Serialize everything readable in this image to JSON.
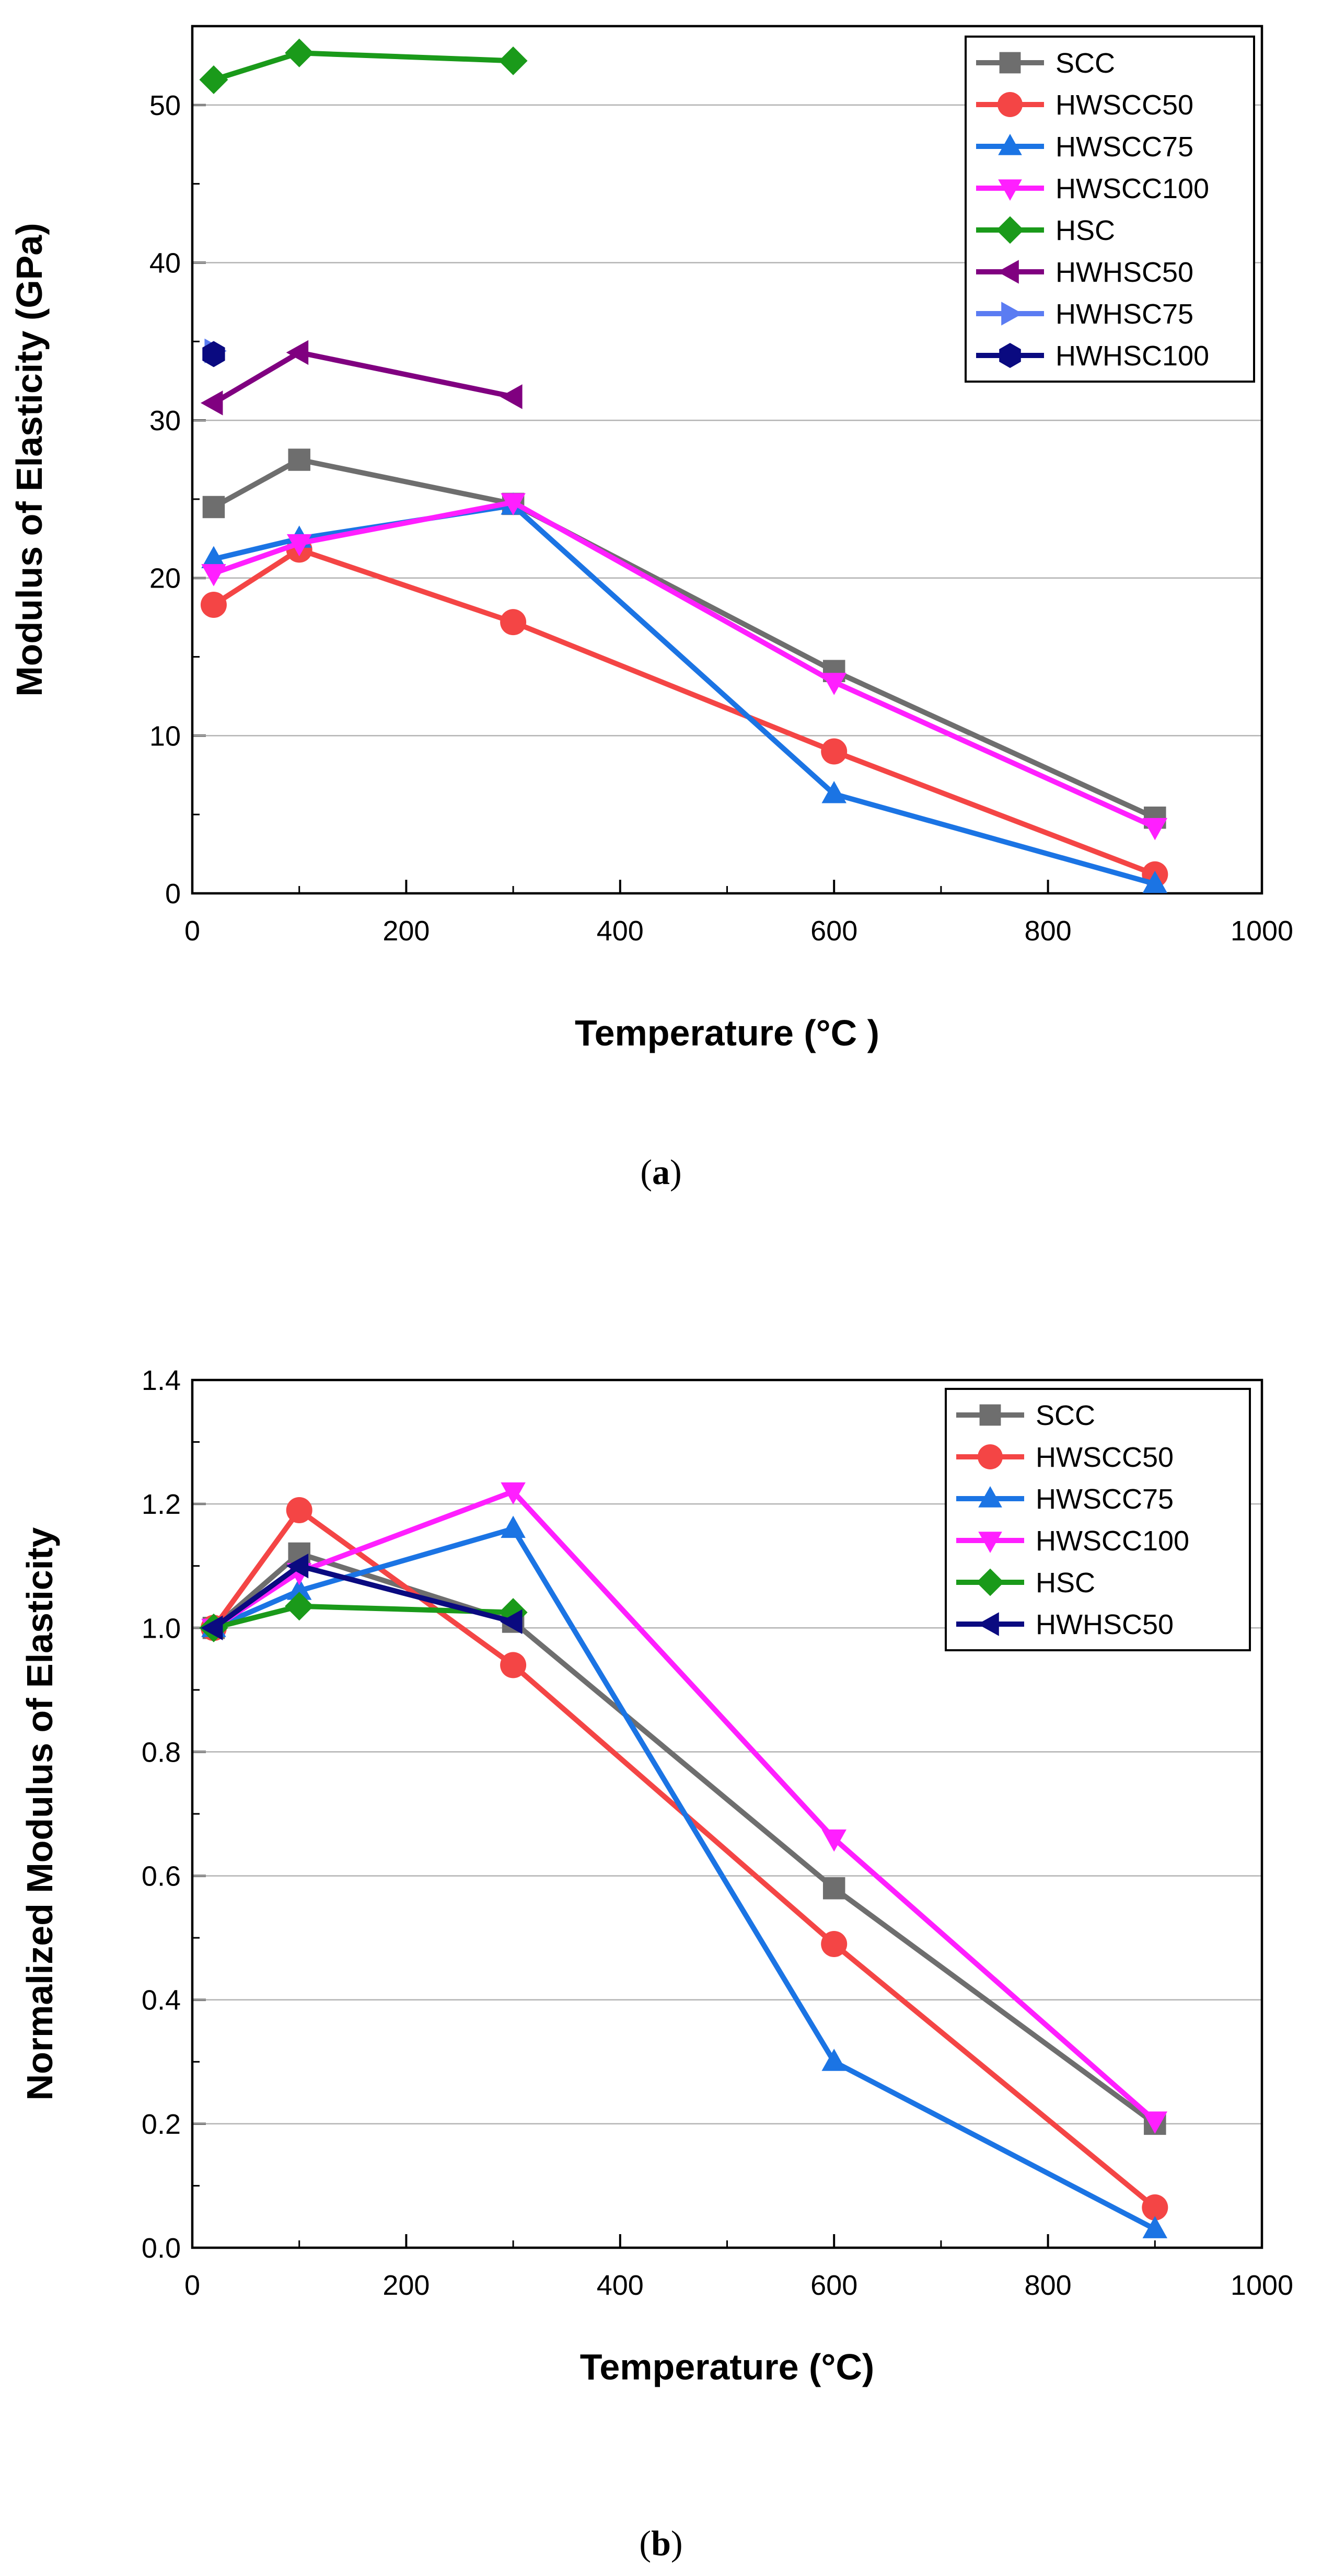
{
  "figure": {
    "caption_a": {
      "open": "(",
      "letter": "a",
      "close": ")"
    },
    "caption_b": {
      "open": "(",
      "letter": "b",
      "close": ")"
    }
  },
  "chart_data": [
    {
      "id": "a",
      "type": "line",
      "xlabel": "Temperature (°C )",
      "ylabel": "Modulus of Elasticity (GPa)",
      "xlim": [
        0,
        1000
      ],
      "ylim": [
        0,
        55
      ],
      "xticks": [
        0,
        200,
        400,
        600,
        800,
        1000
      ],
      "yticks": [
        0,
        10,
        20,
        30,
        40,
        50
      ],
      "grid": true,
      "legend_position": "top-right",
      "series": [
        {
          "name": "SCC",
          "color": "#6e6e6e",
          "marker": "square",
          "x": [
            20,
            100,
            300,
            600,
            900
          ],
          "y": [
            24.5,
            27.5,
            24.7,
            14.1,
            4.8
          ]
        },
        {
          "name": "HWSCC50",
          "color": "#f44545",
          "marker": "circle",
          "x": [
            20,
            100,
            300,
            600,
            900
          ],
          "y": [
            18.3,
            21.8,
            17.2,
            9.0,
            1.2
          ]
        },
        {
          "name": "HWSCC75",
          "color": "#1b74e4",
          "marker": "triangle-up",
          "x": [
            20,
            100,
            300,
            600,
            900
          ],
          "y": [
            21.2,
            22.5,
            24.6,
            6.3,
            0.6
          ]
        },
        {
          "name": "HWSCC100",
          "color": "#ff1fff",
          "marker": "triangle-down",
          "x": [
            20,
            100,
            300,
            600,
            900
          ],
          "y": [
            20.3,
            22.2,
            24.8,
            13.4,
            4.2
          ]
        },
        {
          "name": "HSC",
          "color": "#1a9a1a",
          "marker": "diamond",
          "x": [
            20,
            100,
            300
          ],
          "y": [
            51.6,
            53.3,
            52.8
          ]
        },
        {
          "name": "HWHSC50",
          "color": "#800080",
          "marker": "triangle-left",
          "x": [
            20,
            100,
            300
          ],
          "y": [
            31.1,
            34.3,
            31.5
          ]
        },
        {
          "name": "HWHSC75",
          "color": "#5b7cf2",
          "marker": "triangle-right",
          "x": [
            20
          ],
          "y": [
            34.4
          ]
        },
        {
          "name": "HWHSC100",
          "color": "#0a0a80",
          "marker": "hexagon",
          "x": [
            20
          ],
          "y": [
            34.2
          ]
        }
      ]
    },
    {
      "id": "b",
      "type": "line",
      "xlabel": "Temperature (°C)",
      "ylabel": "Normalized Modulus of Elasticity",
      "xlim": [
        0,
        1000
      ],
      "ylim": [
        0,
        1.4
      ],
      "xticks": [
        0,
        200,
        400,
        600,
        800,
        1000
      ],
      "yticks": [
        "0.0",
        "0.2",
        "0.4",
        "0.6",
        "0.8",
        "1.0",
        "1.2",
        "1.4"
      ],
      "grid": true,
      "legend_position": "top-right",
      "series": [
        {
          "name": "SCC",
          "color": "#6e6e6e",
          "marker": "square",
          "x": [
            20,
            100,
            300,
            600,
            900
          ],
          "y": [
            1.0,
            1.12,
            1.01,
            0.58,
            0.2
          ]
        },
        {
          "name": "HWSCC50",
          "color": "#f44545",
          "marker": "circle",
          "x": [
            20,
            100,
            300,
            600,
            900
          ],
          "y": [
            1.0,
            1.19,
            0.94,
            0.49,
            0.065
          ]
        },
        {
          "name": "HWSCC75",
          "color": "#1b74e4",
          "marker": "triangle-up",
          "x": [
            20,
            100,
            300,
            600,
            900
          ],
          "y": [
            1.0,
            1.06,
            1.16,
            0.3,
            0.03
          ]
        },
        {
          "name": "HWSCC100",
          "color": "#ff1fff",
          "marker": "triangle-down",
          "x": [
            20,
            100,
            300,
            600,
            900
          ],
          "y": [
            1.0,
            1.09,
            1.22,
            0.66,
            0.205
          ]
        },
        {
          "name": "HSC",
          "color": "#1a9a1a",
          "marker": "diamond",
          "x": [
            20,
            100,
            300
          ],
          "y": [
            1.0,
            1.035,
            1.025
          ]
        },
        {
          "name": "HWHSC50",
          "color": "#0a0a80",
          "marker": "triangle-left",
          "x": [
            20,
            100,
            300
          ],
          "y": [
            1.0,
            1.1,
            1.01
          ]
        }
      ]
    }
  ]
}
